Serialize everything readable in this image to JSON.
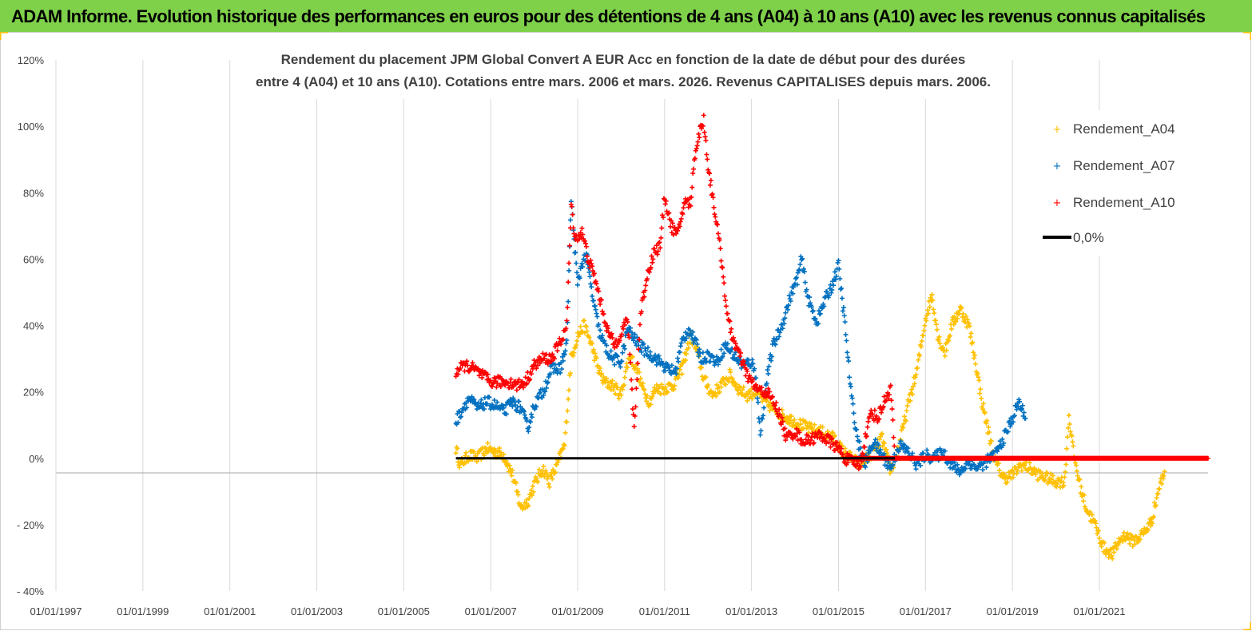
{
  "header": {
    "title": "ADAM Informe. Evolution historique des performances en euros pour des détentions de 4 ans (A04) à 10 ans (A10) avec les revenus connus capitalisés"
  },
  "colors": {
    "header_bg": "#7fd14a",
    "a04": "#ffc000",
    "a07": "#0070c0",
    "a10": "#ff0000",
    "zero": "#000000"
  },
  "chart_data": {
    "type": "scatter",
    "title_lines": [
      "Rendement du placement JPM Global Convert A EUR Acc en fonction de la date de début pour des durées",
      "entre 4 (A04) et 10 ans (A10). Cotations entre mars. 2006 et mars. 2026. Revenus CAPITALISES depuis mars. 2006."
    ],
    "y_ticks": [
      "120%",
      "100%",
      "80%",
      "60%",
      "40%",
      "20%",
      "0%",
      "- 20%",
      "- 40%"
    ],
    "y_tick_values": [
      120,
      100,
      80,
      60,
      40,
      20,
      0,
      -20,
      -40
    ],
    "ylim": [
      -40,
      120
    ],
    "x_ticks": [
      "01/01/1997",
      "01/01/1999",
      "01/01/2001",
      "01/01/2003",
      "01/01/2005",
      "01/01/2007",
      "01/01/2009",
      "01/01/2011",
      "01/01/2013",
      "01/01/2015",
      "01/01/2017",
      "01/01/2019",
      "01/01/2021"
    ],
    "x_tick_values": [
      1997,
      1999,
      2001,
      2003,
      2005,
      2007,
      2009,
      2011,
      2013,
      2015,
      2017,
      2019,
      2021
    ],
    "xlim": [
      1997,
      2023.5
    ],
    "legend": [
      "Rendement_A04",
      "Rendement_A07",
      "Rendement_A10",
      "0,0%"
    ],
    "series": [
      {
        "name": "Rendement_A04",
        "points": [
          [
            2006.2,
            3
          ],
          [
            2006.3,
            -2
          ],
          [
            2006.5,
            1
          ],
          [
            2006.7,
            0
          ],
          [
            2006.9,
            3
          ],
          [
            2007.1,
            2
          ],
          [
            2007.3,
            1
          ],
          [
            2007.5,
            -5
          ],
          [
            2007.7,
            -15
          ],
          [
            2007.85,
            -13
          ],
          [
            2008.0,
            -8
          ],
          [
            2008.2,
            -3
          ],
          [
            2008.35,
            -7
          ],
          [
            2008.5,
            -3
          ],
          [
            2008.7,
            4
          ],
          [
            2008.85,
            30
          ],
          [
            2009.0,
            37
          ],
          [
            2009.15,
            40
          ],
          [
            2009.3,
            35
          ],
          [
            2009.45,
            28
          ],
          [
            2009.6,
            23
          ],
          [
            2009.8,
            22
          ],
          [
            2010.0,
            19
          ],
          [
            2010.1,
            26
          ],
          [
            2010.2,
            31
          ],
          [
            2010.35,
            27
          ],
          [
            2010.5,
            21
          ],
          [
            2010.65,
            17
          ],
          [
            2010.8,
            21
          ],
          [
            2011.0,
            21
          ],
          [
            2011.2,
            22
          ],
          [
            2011.4,
            27
          ],
          [
            2011.6,
            37
          ],
          [
            2011.75,
            32
          ],
          [
            2011.9,
            24
          ],
          [
            2012.1,
            19
          ],
          [
            2012.3,
            22
          ],
          [
            2012.5,
            25
          ],
          [
            2012.7,
            21
          ],
          [
            2012.9,
            19
          ],
          [
            2013.1,
            20
          ],
          [
            2013.4,
            16
          ],
          [
            2013.7,
            13
          ],
          [
            2014.0,
            11
          ],
          [
            2014.3,
            9
          ],
          [
            2014.6,
            8
          ],
          [
            2014.9,
            6
          ],
          [
            2015.1,
            2
          ],
          [
            2015.3,
            0
          ],
          [
            2015.5,
            -2
          ],
          [
            2015.8,
            2
          ],
          [
            2016.0,
            6
          ],
          [
            2016.2,
            -4
          ],
          [
            2016.4,
            4
          ],
          [
            2016.6,
            16
          ],
          [
            2016.8,
            26
          ],
          [
            2017.0,
            42
          ],
          [
            2017.15,
            49
          ],
          [
            2017.3,
            36
          ],
          [
            2017.45,
            32
          ],
          [
            2017.6,
            40
          ],
          [
            2017.8,
            45
          ],
          [
            2018.0,
            40
          ],
          [
            2018.15,
            29
          ],
          [
            2018.3,
            17
          ],
          [
            2018.45,
            8
          ],
          [
            2018.6,
            -1
          ],
          [
            2018.8,
            -6
          ],
          [
            2019.0,
            -5
          ],
          [
            2019.2,
            -2
          ],
          [
            2019.4,
            -3
          ],
          [
            2019.6,
            -5
          ],
          [
            2019.8,
            -6
          ],
          [
            2020.0,
            -7
          ],
          [
            2020.2,
            -7
          ],
          [
            2020.3,
            13
          ],
          [
            2020.4,
            2
          ],
          [
            2020.55,
            -8
          ],
          [
            2020.7,
            -15
          ],
          [
            2020.9,
            -20
          ],
          [
            2021.1,
            -27
          ],
          [
            2021.3,
            -29
          ],
          [
            2021.45,
            -25
          ],
          [
            2021.6,
            -23
          ],
          [
            2021.75,
            -25
          ],
          [
            2021.9,
            -24
          ],
          [
            2022.05,
            -22
          ],
          [
            2022.2,
            -19
          ],
          [
            2022.35,
            -10
          ],
          [
            2022.5,
            -4
          ]
        ]
      },
      {
        "name": "Rendement_A07",
        "points": [
          [
            2006.2,
            11
          ],
          [
            2006.35,
            15
          ],
          [
            2006.5,
            18
          ],
          [
            2006.7,
            15
          ],
          [
            2006.9,
            17
          ],
          [
            2007.1,
            16
          ],
          [
            2007.3,
            14
          ],
          [
            2007.5,
            17
          ],
          [
            2007.7,
            15
          ],
          [
            2007.85,
            9
          ],
          [
            2008.0,
            16
          ],
          [
            2008.2,
            20
          ],
          [
            2008.4,
            27
          ],
          [
            2008.6,
            27
          ],
          [
            2008.75,
            34
          ],
          [
            2008.85,
            78
          ],
          [
            2009.0,
            52
          ],
          [
            2009.1,
            59
          ],
          [
            2009.2,
            61
          ],
          [
            2009.35,
            48
          ],
          [
            2009.5,
            38
          ],
          [
            2009.65,
            33
          ],
          [
            2009.8,
            30
          ],
          [
            2010.0,
            29
          ],
          [
            2010.15,
            39
          ],
          [
            2010.3,
            36
          ],
          [
            2010.5,
            33
          ],
          [
            2010.7,
            31
          ],
          [
            2010.9,
            29
          ],
          [
            2011.05,
            27
          ],
          [
            2011.25,
            26
          ],
          [
            2011.4,
            35
          ],
          [
            2011.55,
            39
          ],
          [
            2011.7,
            35
          ],
          [
            2011.85,
            30
          ],
          [
            2012.0,
            31
          ],
          [
            2012.2,
            29
          ],
          [
            2012.4,
            34
          ],
          [
            2012.6,
            31
          ],
          [
            2012.8,
            28
          ],
          [
            2013.0,
            29
          ],
          [
            2013.1,
            25
          ],
          [
            2013.2,
            7
          ],
          [
            2013.35,
            24
          ],
          [
            2013.5,
            34
          ],
          [
            2013.7,
            40
          ],
          [
            2013.9,
            49
          ],
          [
            2014.05,
            54
          ],
          [
            2014.15,
            60
          ],
          [
            2014.3,
            48
          ],
          [
            2014.5,
            41
          ],
          [
            2014.7,
            48
          ],
          [
            2014.85,
            52
          ],
          [
            2015.0,
            58
          ],
          [
            2015.15,
            40
          ],
          [
            2015.3,
            18
          ],
          [
            2015.45,
            5
          ],
          [
            2015.6,
            -2
          ],
          [
            2015.8,
            5
          ],
          [
            2016.0,
            1
          ],
          [
            2016.2,
            -3
          ],
          [
            2016.4,
            4
          ],
          [
            2016.6,
            2
          ],
          [
            2016.8,
            -2
          ],
          [
            2017.0,
            1
          ],
          [
            2017.2,
            0
          ],
          [
            2017.4,
            2
          ],
          [
            2017.6,
            -2
          ],
          [
            2017.8,
            -4
          ],
          [
            2018.0,
            -1
          ],
          [
            2018.2,
            -3
          ],
          [
            2018.4,
            -1
          ],
          [
            2018.6,
            1
          ],
          [
            2018.8,
            6
          ],
          [
            2019.0,
            12
          ],
          [
            2019.15,
            17
          ],
          [
            2019.3,
            12
          ]
        ]
      },
      {
        "name": "Rendement_A10",
        "points": [
          [
            2006.2,
            26
          ],
          [
            2006.4,
            28
          ],
          [
            2006.6,
            27
          ],
          [
            2006.8,
            25
          ],
          [
            2007.0,
            23
          ],
          [
            2007.2,
            23
          ],
          [
            2007.4,
            23
          ],
          [
            2007.6,
            22
          ],
          [
            2007.8,
            23
          ],
          [
            2008.0,
            28
          ],
          [
            2008.2,
            30
          ],
          [
            2008.4,
            30
          ],
          [
            2008.6,
            35
          ],
          [
            2008.75,
            40
          ],
          [
            2008.85,
            76
          ],
          [
            2008.95,
            66
          ],
          [
            2009.1,
            68
          ],
          [
            2009.25,
            60
          ],
          [
            2009.4,
            54
          ],
          [
            2009.55,
            46
          ],
          [
            2009.7,
            38
          ],
          [
            2009.85,
            34
          ],
          [
            2010.0,
            38
          ],
          [
            2010.15,
            42
          ],
          [
            2010.3,
            9
          ],
          [
            2010.45,
            44
          ],
          [
            2010.6,
            55
          ],
          [
            2010.75,
            62
          ],
          [
            2010.9,
            64
          ],
          [
            2011.0,
            79
          ],
          [
            2011.15,
            70
          ],
          [
            2011.3,
            67
          ],
          [
            2011.45,
            77
          ],
          [
            2011.6,
            77
          ],
          [
            2011.7,
            92
          ],
          [
            2011.8,
            98
          ],
          [
            2011.9,
            102
          ],
          [
            2012.0,
            88
          ],
          [
            2012.15,
            75
          ],
          [
            2012.3,
            61
          ],
          [
            2012.45,
            42
          ],
          [
            2012.6,
            35
          ],
          [
            2012.75,
            30
          ],
          [
            2012.9,
            25
          ],
          [
            2013.05,
            22
          ],
          [
            2013.2,
            20
          ],
          [
            2013.35,
            20
          ],
          [
            2013.5,
            17
          ],
          [
            2013.65,
            13
          ],
          [
            2013.8,
            6
          ],
          [
            2014.0,
            8
          ],
          [
            2014.2,
            5
          ],
          [
            2014.4,
            6
          ],
          [
            2014.6,
            7
          ],
          [
            2014.8,
            5
          ],
          [
            2015.0,
            3
          ],
          [
            2015.15,
            0
          ],
          [
            2015.3,
            -1
          ],
          [
            2015.5,
            -2
          ],
          [
            2015.6,
            5
          ],
          [
            2015.75,
            14
          ],
          [
            2015.9,
            12
          ],
          [
            2016.05,
            17
          ],
          [
            2016.2,
            21
          ],
          [
            2016.3,
            0
          ],
          [
            2016.6,
            0
          ],
          [
            2017.0,
            0
          ],
          [
            2017.5,
            0
          ],
          [
            2018.0,
            0
          ],
          [
            2018.5,
            0
          ],
          [
            2019.0,
            0
          ],
          [
            2019.5,
            0
          ],
          [
            2020.0,
            0
          ],
          [
            2020.5,
            0
          ],
          [
            2021.0,
            0
          ],
          [
            2021.5,
            0
          ],
          [
            2022.0,
            0
          ],
          [
            2022.5,
            0
          ],
          [
            2023.0,
            0
          ],
          [
            2023.5,
            0
          ]
        ]
      },
      {
        "name": "0,0%",
        "x_range": [
          2006.2,
          2016.3
        ],
        "value": 0
      }
    ]
  }
}
